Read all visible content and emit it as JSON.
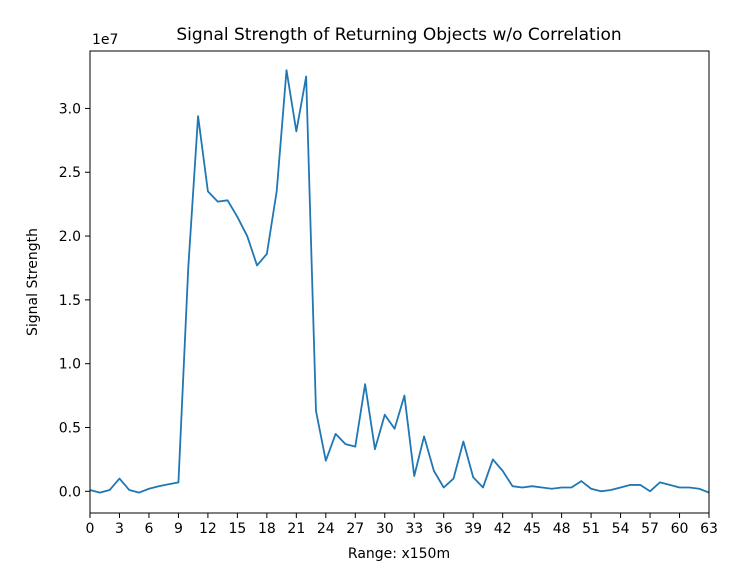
{
  "chart_data": {
    "type": "line",
    "title": "Signal Strength of Returning Objects w/o Correlation",
    "xlabel": "Range: x150m",
    "ylabel": "Signal Strength",
    "y_offset_label": "1e7",
    "xlim": [
      0,
      63
    ],
    "ylim": [
      -0.17,
      3.45
    ],
    "x_ticks": [
      0,
      3,
      6,
      9,
      12,
      15,
      18,
      21,
      24,
      27,
      30,
      33,
      36,
      39,
      42,
      45,
      48,
      51,
      54,
      57,
      60,
      63
    ],
    "y_ticks": [
      0.0,
      0.5,
      1.0,
      1.5,
      2.0,
      2.5,
      3.0
    ],
    "y_tick_labels": [
      "0.0",
      "0.5",
      "1.0",
      "1.5",
      "2.0",
      "2.5",
      "3.0"
    ],
    "grid": false,
    "series": [
      {
        "color": "#1f77b4",
        "x": [
          0,
          1,
          2,
          3,
          4,
          5,
          6,
          7,
          8,
          9,
          10,
          11,
          12,
          13,
          14,
          15,
          16,
          17,
          18,
          19,
          20,
          21,
          22,
          23,
          24,
          25,
          26,
          27,
          28,
          29,
          30,
          31,
          32,
          33,
          34,
          35,
          36,
          37,
          38,
          39,
          40,
          41,
          42,
          43,
          44,
          45,
          46,
          47,
          48,
          49,
          50,
          51,
          52,
          53,
          54,
          55,
          56,
          57,
          58,
          59,
          60,
          61,
          62,
          63
        ],
        "values": [
          0.01,
          -0.01,
          0.01,
          0.1,
          0.01,
          -0.01,
          0.02,
          0.04,
          0.055,
          0.07,
          1.75,
          2.94,
          2.35,
          2.27,
          2.28,
          2.15,
          2.0,
          1.77,
          1.86,
          2.35,
          3.3,
          2.82,
          3.25,
          0.63,
          0.24,
          0.45,
          0.37,
          0.35,
          0.84,
          0.33,
          0.6,
          0.49,
          0.75,
          0.12,
          0.43,
          0.16,
          0.03,
          0.1,
          0.39,
          0.11,
          0.03,
          0.25,
          0.16,
          0.04,
          0.03,
          0.04,
          0.03,
          0.02,
          0.03,
          0.03,
          0.08,
          0.02,
          0.0,
          0.01,
          0.03,
          0.05,
          0.05,
          0.0,
          0.07,
          0.05,
          0.03,
          0.03,
          0.02,
          -0.01
        ]
      }
    ]
  }
}
